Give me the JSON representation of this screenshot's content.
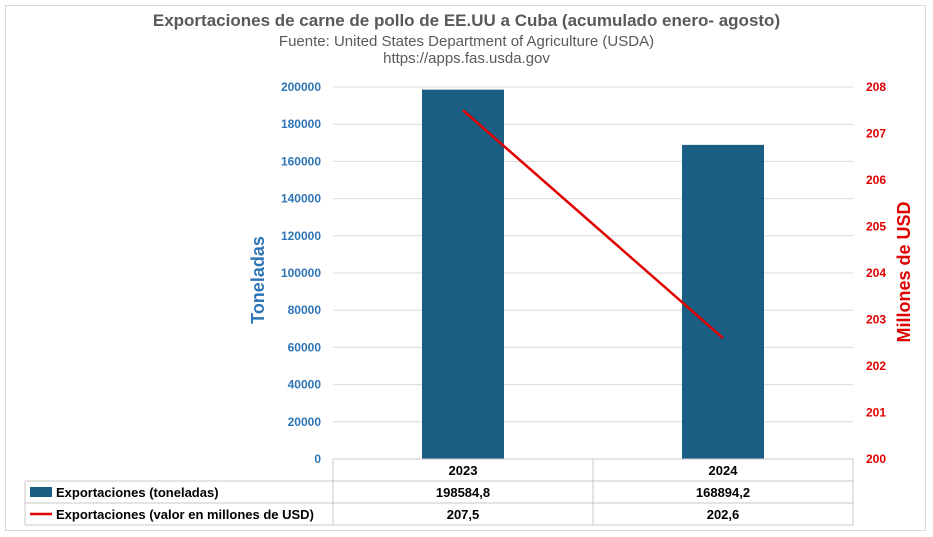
{
  "chart_data": {
    "type": "bar",
    "title": "Exportaciones de carne de pollo de EE.UU a Cuba (acumulado enero- agosto)",
    "subtitle": "Fuente: United States Department of Agriculture (USDA)",
    "subtitle2": "https://apps.fas.usda.gov",
    "categories": [
      "2023",
      "2024"
    ],
    "series": [
      {
        "name": "Exportaciones (toneladas)",
        "type": "bar",
        "axis": "left",
        "color": "#1a5e84",
        "values": [
          198584.8,
          168894.2
        ],
        "value_labels": [
          "198584,8",
          "168894,2"
        ]
      },
      {
        "name": "Exportaciones (valor en millones de USD)",
        "type": "line",
        "axis": "right",
        "color": "#e00000",
        "values": [
          207.5,
          202.6
        ],
        "value_labels": [
          "207,5",
          "202,6"
        ]
      }
    ],
    "ylabel": "Toneladas",
    "ylim": [
      0,
      200000
    ],
    "yticks": [
      "0",
      "20000",
      "40000",
      "60000",
      "80000",
      "100000",
      "120000",
      "140000",
      "160000",
      "180000",
      "200000"
    ],
    "y2label": "Millones de USD",
    "y2lim": [
      200,
      208
    ],
    "y2ticks": [
      "200",
      "201",
      "202",
      "203",
      "204",
      "205",
      "206",
      "207",
      "208"
    ],
    "grid": true,
    "legend": "data table below chart",
    "tick_colors": {
      "left": "#2e75b6",
      "right": "#e00000"
    }
  }
}
